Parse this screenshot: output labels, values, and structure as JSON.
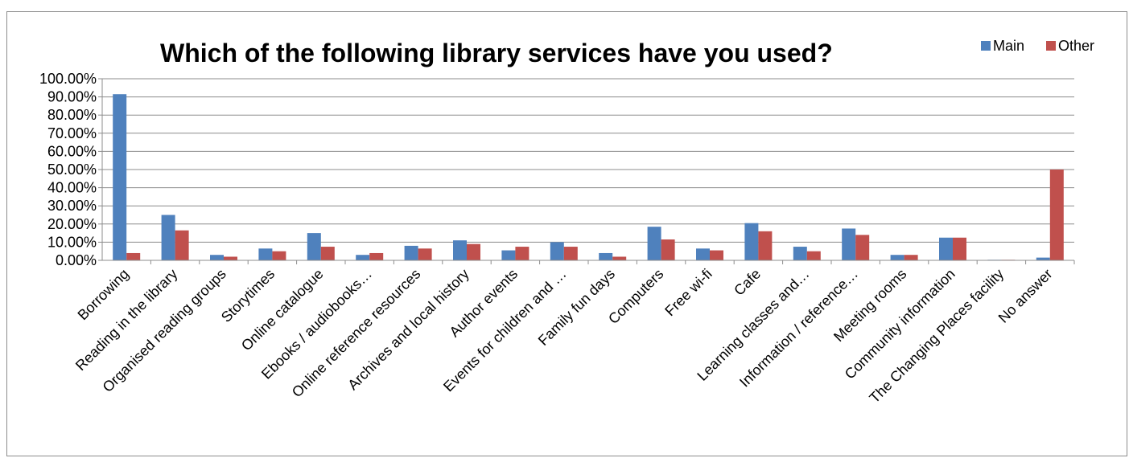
{
  "chart_data": {
    "type": "bar",
    "title": "Which of the following library services have you used?",
    "xlabel": "",
    "ylabel": "",
    "ylim": [
      0,
      100
    ],
    "yticks": [
      "0.00%",
      "10.00%",
      "20.00%",
      "30.00%",
      "40.00%",
      "50.00%",
      "60.00%",
      "70.00%",
      "80.00%",
      "90.00%",
      "100.00%"
    ],
    "grid": true,
    "legend_position": "top-right",
    "categories": [
      "Borrowing",
      "Reading in the library",
      "Organised reading groups",
      "Storytimes",
      "Online catalogue",
      "Ebooks / audiobooks…",
      "Online reference resources",
      "Archives and local history",
      "Author events",
      "Events for children and …",
      "Family fun days",
      "Computers",
      "Free wi-fi",
      "Cafe",
      "Learning classes and…",
      "Information / reference…",
      "Meeting rooms",
      "Community information",
      "The Changing Places facility",
      "No answer"
    ],
    "series": [
      {
        "name": "Main",
        "color": "#4f81bd",
        "values": [
          91.5,
          25,
          3,
          6.5,
          15,
          3,
          8,
          11,
          5.5,
          10,
          4,
          18.5,
          6.5,
          20.5,
          7.5,
          17.5,
          3,
          12.5,
          0.3,
          1.5
        ]
      },
      {
        "name": "Other",
        "color": "#c0504d",
        "values": [
          4,
          16.5,
          2,
          5,
          7.5,
          4,
          6.5,
          9,
          7.5,
          7.5,
          2,
          11.5,
          5.5,
          16,
          5,
          14,
          3,
          12.5,
          0.3,
          50
        ]
      }
    ]
  }
}
